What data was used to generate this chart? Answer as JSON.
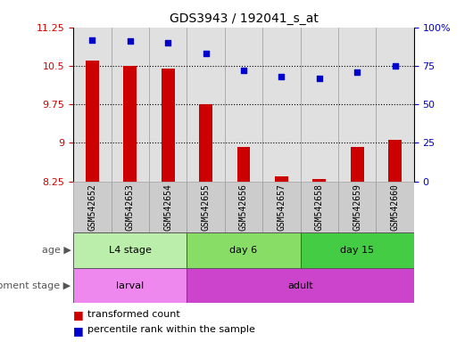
{
  "title": "GDS3943 / 192041_s_at",
  "samples": [
    "GSM542652",
    "GSM542653",
    "GSM542654",
    "GSM542655",
    "GSM542656",
    "GSM542657",
    "GSM542658",
    "GSM542659",
    "GSM542660"
  ],
  "transformed_count": [
    10.6,
    10.5,
    10.45,
    9.75,
    8.92,
    8.35,
    8.3,
    8.92,
    9.05
  ],
  "percentile_rank": [
    92,
    91,
    90,
    83,
    72,
    68,
    67,
    71,
    75
  ],
  "ylim_left": [
    8.25,
    11.25
  ],
  "ylim_right": [
    0,
    100
  ],
  "yticks_left": [
    8.25,
    9,
    9.75,
    10.5,
    11.25
  ],
  "yticks_right": [
    0,
    25,
    50,
    75,
    100
  ],
  "ytick_labels_left": [
    "8.25",
    "9",
    "9.75",
    "10.5",
    "11.25"
  ],
  "ytick_labels_right": [
    "0",
    "25",
    "50",
    "75",
    "100%"
  ],
  "hlines": [
    9,
    9.75,
    10.5
  ],
  "bar_color": "#cc0000",
  "dot_color": "#0000cc",
  "age_groups": [
    {
      "label": "L4 stage",
      "start": 0,
      "end": 3,
      "color": "#bbeeaa"
    },
    {
      "label": "day 6",
      "start": 3,
      "end": 6,
      "color": "#88dd66"
    },
    {
      "label": "day 15",
      "start": 6,
      "end": 9,
      "color": "#44cc44"
    }
  ],
  "dev_groups": [
    {
      "label": "larval",
      "start": 0,
      "end": 3,
      "color": "#ee88ee"
    },
    {
      "label": "adult",
      "start": 3,
      "end": 9,
      "color": "#cc44cc"
    }
  ],
  "age_label": "age",
  "dev_label": "development stage",
  "legend_bar_label": "transformed count",
  "legend_dot_label": "percentile rank within the sample",
  "tick_color_left": "#cc0000",
  "tick_color_right": "#0000cc",
  "bar_width": 0.35,
  "column_bg_color": "#cccccc",
  "background_color": "#ffffff"
}
